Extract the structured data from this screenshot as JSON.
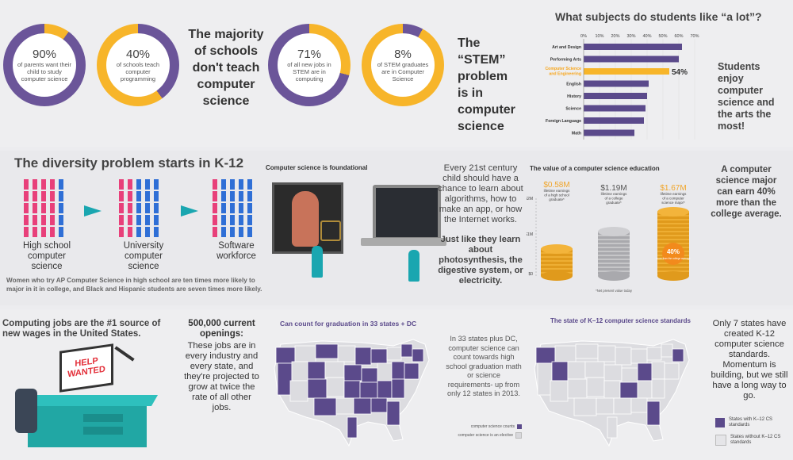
{
  "rings": [
    {
      "pct": "90%",
      "cap": "of parents want their child to study computer science"
    },
    {
      "pct": "40%",
      "cap": "of schools teach computer programming"
    },
    {
      "pct": "71%",
      "cap": "of all new jobs in STEM are in computing"
    },
    {
      "pct": "8%",
      "cap": "of STEM graduates are in Computer Science"
    }
  ],
  "majority_text": "The majority of schools don't teach computer science",
  "stem_text": "The “STEM” problem is in computer science",
  "subjects": {
    "title": "What subjects do students like “a lot”?",
    "ticks": [
      "0%",
      "10%",
      "20%",
      "30%",
      "40%",
      "50%",
      "60%",
      "70%"
    ],
    "categories": [
      "Art and Design",
      "Performing Arts",
      "Computer Science and Engineering",
      "English",
      "History",
      "Science",
      "Foreign Language",
      "Math"
    ],
    "highlight_label": "54%",
    "side_text": "Students enjoy computer science and the arts the most!"
  },
  "chart_data": {
    "type": "bar",
    "title": "What subjects do students like “a lot”?",
    "categories": [
      "Art and Design",
      "Performing Arts",
      "Computer Science and Engineering",
      "English",
      "History",
      "Science",
      "Foreign Language",
      "Math"
    ],
    "values": [
      62,
      60,
      54,
      41,
      40,
      39,
      38,
      32
    ],
    "xlim": [
      0,
      70
    ],
    "highlight": "Computer Science and Engineering",
    "colors": {
      "bar": "#5b4a8b",
      "highlight": "#f7b52a"
    }
  },
  "diversity": {
    "title": "The diversity problem starts in K-12",
    "labels": [
      "High school computer science",
      "University computer science",
      "Software workforce"
    ],
    "footnote": "Women who try AP Computer Science in high school are ten times more likely to major in it in college, and Black and Hispanic students are seven times more likely."
  },
  "foundational": {
    "title": "Computer science is foundational",
    "body1": "Every 21st century child should have a chance to learn about algorithms, how to make an app, or how the Internet works.",
    "body2": "Just like they learn about photosynthesis, the digestive system, or electricity."
  },
  "value": {
    "title": "The value of a computer science education",
    "items": [
      {
        "amount": "$0.58M",
        "cap": "lifetime earnings of a high school graduate*"
      },
      {
        "amount": "$1.19M",
        "cap": "lifetime earnings of a college graduate*"
      },
      {
        "amount": "$1.67M",
        "cap": "lifetime earnings of a computer science major*"
      }
    ],
    "axis": [
      "$2M",
      "$1M",
      "$0"
    ],
    "badge_pct": "40%",
    "badge_cap": "more than the college average",
    "note": "*Net present value today",
    "side_text": "A computer science major can earn 40% more than the college average."
  },
  "jobs": {
    "headline": "Computing jobs are the #1 source of new wages in the United States.",
    "sign": "HELP WANTED",
    "openings": "500,000 current openings:",
    "body": "These jobs are in every industry and every state, and they're projected to grow at twice the rate of all other jobs."
  },
  "grad": {
    "title": "Can count for graduation in 33 states + DC",
    "body": "In 33 states plus DC, computer science can count towards high school graduation math or science requirements- up from only 12 states in 2013.",
    "legend": [
      "computer science counts",
      "computer science is an elective"
    ]
  },
  "standards": {
    "title": "The state of K–12 computer science standards",
    "body": "Only 7 states have created K-12 computer science standards. Momentum is building, but we still have a long way to go.",
    "legend": [
      "States with K–12 CS standards",
      "States without K–12 CS standards"
    ]
  },
  "colors": {
    "purple": "#6b5599",
    "orange": "#f7b52a",
    "pink": "#e8407a",
    "blue": "#2f6fd6",
    "teal": "#1aa6b0",
    "grey": "#d8d8dc"
  }
}
